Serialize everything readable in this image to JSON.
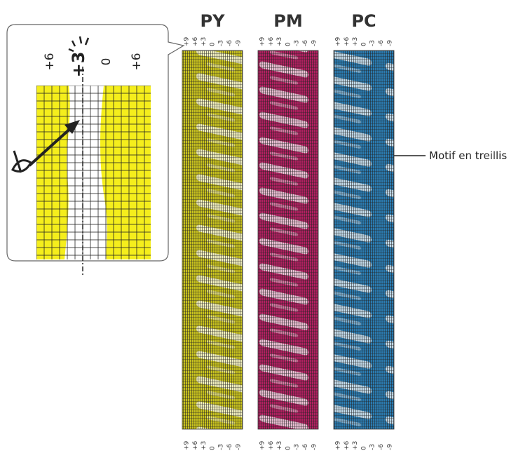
{
  "inset": {
    "labels": [
      "+6",
      "+3",
      "0",
      "+6"
    ]
  },
  "strips": [
    {
      "label": "PY"
    },
    {
      "label": "PM"
    },
    {
      "label": "PC"
    }
  ],
  "scale": [
    "+9",
    "+6",
    "+3",
    "0",
    "-3",
    "-6",
    "-9"
  ],
  "callout": "Motif en treillis"
}
